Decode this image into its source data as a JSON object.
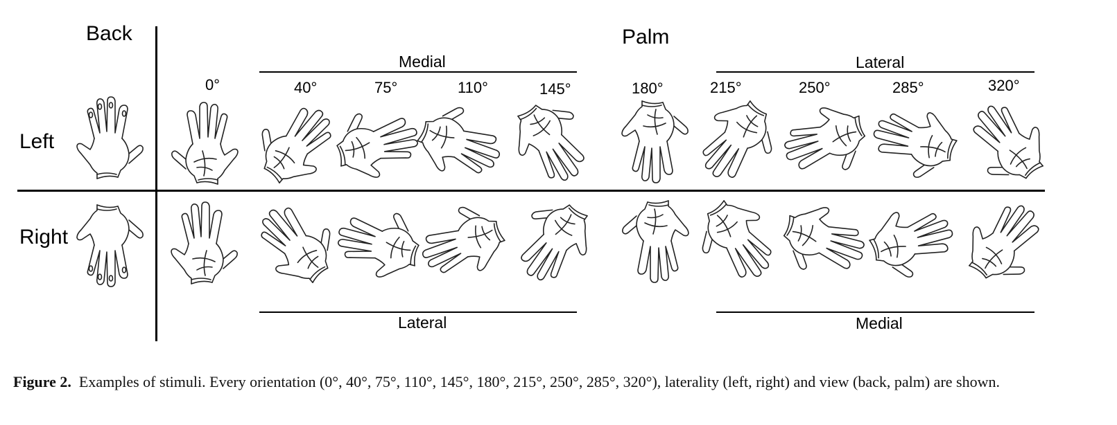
{
  "figure": {
    "view_back": "Back",
    "view_palm": "Palm",
    "row_left": "Left",
    "row_right": "Right",
    "top_groups": {
      "medial": "Medial",
      "lateral": "Lateral"
    },
    "bottom_groups": {
      "lateral": "Lateral",
      "medial": "Medial"
    },
    "angles": [
      "0°",
      "40°",
      "75°",
      "110°",
      "145°",
      "180°",
      "215°",
      "250°",
      "285°",
      "320°"
    ],
    "angle_values": [
      0,
      40,
      75,
      110,
      145,
      180,
      215,
      250,
      285,
      320
    ]
  },
  "caption": {
    "label": "Figure 2.",
    "text": "Examples of stimuli. Every orientation (0°, 40°, 75°, 110°, 145°, 180°, 215°, 250°, 285°, 320°), laterality (left, right) and view (back, palm) are shown."
  }
}
